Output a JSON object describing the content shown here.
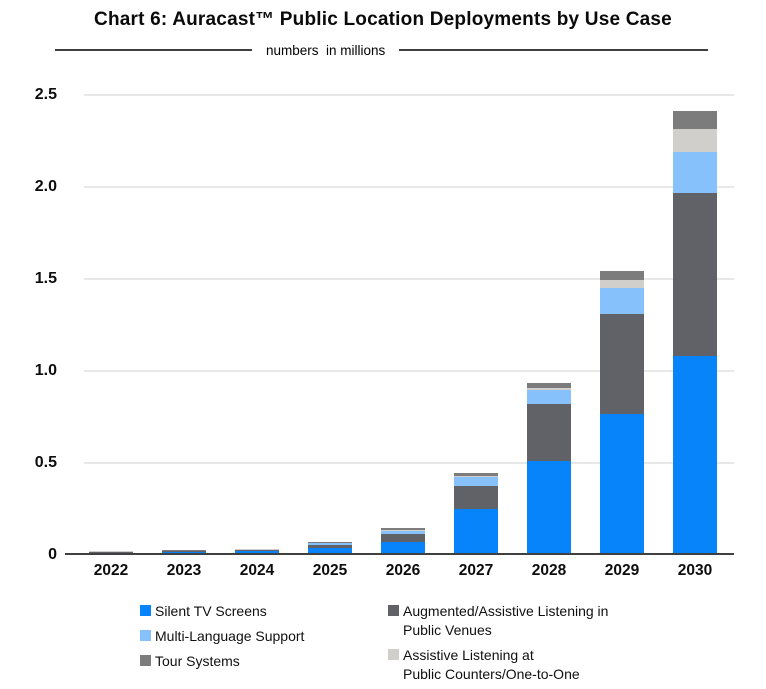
{
  "title": "Chart 6: Auracast™ Public Location Deployments by Use Case",
  "subtitle": "numbers  in millions",
  "colors": {
    "silent_tv": "#0884fa",
    "augmented_assistive": "#606267",
    "multi_language": "#86c1fb",
    "assistive_counters": "#d1cfcb",
    "tour_systems": "#7c7c7c",
    "gridline": "#e8e8e8",
    "axis": "#404040"
  },
  "chart_data": {
    "type": "bar",
    "stacked": true,
    "title": "Chart 6: Auracast™ Public Location Deployments by Use Case",
    "subtitle": "numbers in millions",
    "unit": "millions",
    "grid": true,
    "legend_position": "bottom",
    "categories": [
      "2022",
      "2023",
      "2024",
      "2025",
      "2026",
      "2027",
      "2028",
      "2029",
      "2030"
    ],
    "ylim": [
      0,
      2.5
    ],
    "y_ticks": [
      "2.5",
      "2.0",
      "1.5",
      "1.0",
      "0.5",
      "0"
    ],
    "y_tick_values": [
      2.5,
      2.0,
      1.5,
      1.0,
      0.5,
      0
    ],
    "series": [
      {
        "key": "silent-tv-screens",
        "name": "Silent TV Screens",
        "color": "#0884fa",
        "values": [
          0.008,
          0.011,
          0.015,
          0.035,
          0.068,
          0.245,
          0.505,
          0.76,
          1.075
        ]
      },
      {
        "key": "augmented-assistive-listening-public-venues",
        "name": "Augmented/Assistive Listening in Public Venues",
        "color": "#606267",
        "values": [
          0.003,
          0.004,
          0.006,
          0.016,
          0.042,
          0.125,
          0.31,
          0.545,
          0.885
        ]
      },
      {
        "key": "multi-language-support",
        "name": "Multi-Language Support",
        "color": "#86c1fb",
        "values": [
          0.002,
          0.003,
          0.003,
          0.007,
          0.017,
          0.05,
          0.075,
          0.14,
          0.225
        ]
      },
      {
        "key": "assistive-listening-public-counters",
        "name": "Assistive Listening at Public Counters/One-to-One",
        "color": "#d1cfcb",
        "values": [
          0.001,
          0.001,
          0.001,
          0.002,
          0.003,
          0.005,
          0.012,
          0.045,
          0.125
        ]
      },
      {
        "key": "tour-systems",
        "name": "Tour Systems",
        "color": "#7c7c7c",
        "values": [
          0.002,
          0.002,
          0.002,
          0.005,
          0.012,
          0.018,
          0.028,
          0.05,
          0.1
        ]
      }
    ]
  },
  "legend": {
    "left_column": [
      {
        "key": "silent-tv-screens",
        "label": "Silent TV Screens",
        "color": "#0884fa"
      },
      {
        "key": "multi-language-support",
        "label": "Multi-Language Support",
        "color": "#86c1fb"
      },
      {
        "key": "tour-systems",
        "label": "Tour Systems",
        "color": "#7c7c7c"
      }
    ],
    "right_column": [
      {
        "key": "augmented-assistive-listening-public-venues",
        "label": "Augmented/Assistive Listening in\nPublic Venues",
        "color": "#606267"
      },
      {
        "key": "assistive-listening-public-counters",
        "label": "Assistive Listening at\nPublic Counters/One-to-One",
        "color": "#d1cfcb"
      }
    ]
  }
}
